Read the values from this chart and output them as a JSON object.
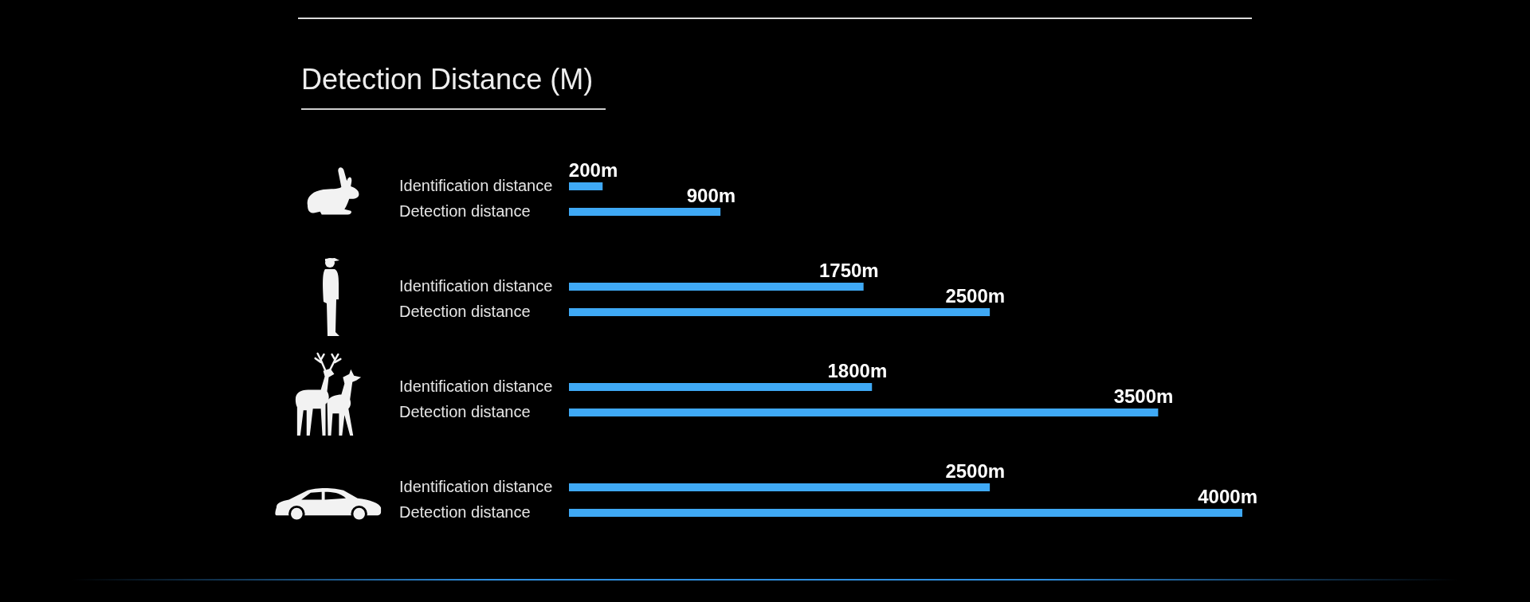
{
  "chart_data": {
    "type": "bar",
    "orientation": "horizontal",
    "title": "Detection Distance (M)",
    "categories": [
      null,
      null,
      null,
      null
    ],
    "series": [
      {
        "name": "Identification distance",
        "color": "#3fa9f5",
        "values": [
          200,
          1750,
          1800,
          2500
        ],
        "value_labels": [
          "200m",
          "1750m",
          "1800m",
          "2500m"
        ]
      },
      {
        "name": "Detection distance",
        "color": "#3fa9f5",
        "values": [
          900,
          2500,
          3500,
          4000
        ],
        "value_labels": [
          "900m",
          "2500m",
          "3500m",
          "4000m"
        ]
      }
    ],
    "tick_labels": false
  }
}
